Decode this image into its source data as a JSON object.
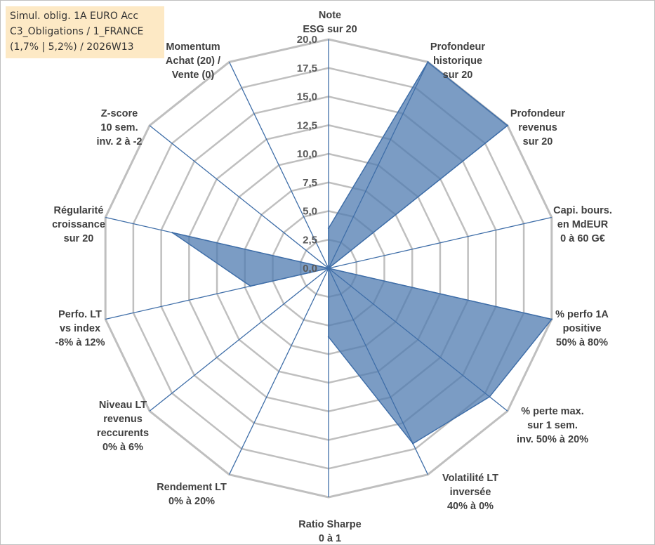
{
  "title_lines": [
    "Simul. oblig. 1A EURO Acc",
    "C3_Obligations / 1_FRANCE",
    "(1,7% | 5,2%) / 2026W13"
  ],
  "chart_data": {
    "type": "radar",
    "title": "Simul. oblig. 1A EURO Acc / C3_Obligations / 1_FRANCE (1,7% | 5,2%) / 2026W13",
    "rlim": [
      0,
      20
    ],
    "ticks": [
      "0,0",
      "2,5",
      "5,0",
      "7,5",
      "10,0",
      "12,5",
      "15,0",
      "17,5",
      "20,0"
    ],
    "tick_values": [
      0,
      2.5,
      5,
      7.5,
      10,
      12.5,
      15,
      17.5,
      20
    ],
    "grid": true,
    "axes": [
      {
        "lines": [
          "Note",
          "ESG sur 20"
        ]
      },
      {
        "lines": [
          "Profondeur",
          "historique",
          "sur 20"
        ]
      },
      {
        "lines": [
          "Profondeur",
          "revenus",
          "sur 20"
        ]
      },
      {
        "lines": [
          "Capi. bours.",
          "en MdEUR",
          "0 à 60 G€"
        ]
      },
      {
        "lines": [
          "% perfo 1A",
          "positive",
          "50% à 80%"
        ]
      },
      {
        "lines": [
          "% perte max.",
          "sur 1 sem.",
          "inv. 50% à 20%"
        ]
      },
      {
        "lines": [
          "Volatilité LT",
          "inversée",
          "40% à 0%"
        ]
      },
      {
        "lines": [
          "Ratio Sharpe",
          "0 à 1"
        ]
      },
      {
        "lines": [
          "Rendement LT",
          "0% à 20%"
        ]
      },
      {
        "lines": [
          "Niveau LT",
          "revenus",
          "reccurents",
          "0% à 6%"
        ]
      },
      {
        "lines": [
          "Perfo. LT",
          "vs index",
          "-8% à 12%"
        ]
      },
      {
        "lines": [
          "Régularité",
          "croissance",
          "sur 20"
        ]
      },
      {
        "lines": [
          "Z-score",
          "10 sem.",
          "inv. 2 à -2"
        ]
      },
      {
        "lines": [
          "Momentum",
          "Achat (20) /",
          "Vente (0)"
        ]
      }
    ],
    "series": [
      {
        "values": [
          3.5,
          20,
          20,
          0,
          20,
          18,
          17,
          6,
          0,
          0,
          7,
          14,
          0,
          0
        ]
      }
    ],
    "colors": {
      "fill": "#4f7bb0",
      "stroke": "#3f6ea8",
      "grid": "#bfbfbf",
      "spoke": "#3f6ea8",
      "text": "#404040"
    }
  }
}
